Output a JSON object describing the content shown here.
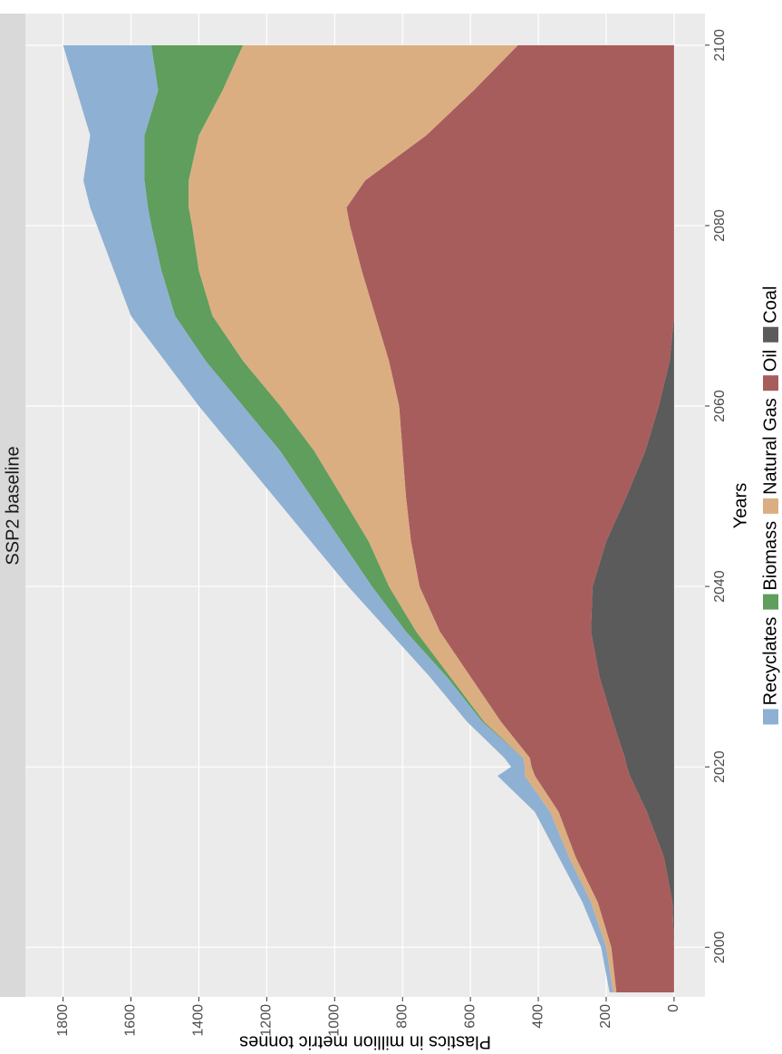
{
  "chart_data": {
    "type": "area",
    "stacked": true,
    "title": "SSP2 baseline",
    "x_label": "Years",
    "y_label": "Plastics in million metric tonnes",
    "x": [
      1995,
      2000,
      2005,
      2010,
      2015,
      2019,
      2020,
      2021,
      2025,
      2030,
      2035,
      2040,
      2045,
      2050,
      2055,
      2060,
      2065,
      2070,
      2075,
      2080,
      2082,
      2085,
      2090,
      2095,
      2100
    ],
    "series": [
      {
        "name": "Recyclates",
        "color": "#8eb0d3",
        "values": [
          10,
          15,
          25,
          30,
          45,
          80,
          40,
          55,
          45,
          50,
          50,
          70,
          90,
          110,
          130,
          130,
          120,
          130,
          140,
          160,
          170,
          180,
          160,
          240,
          260
        ]
      },
      {
        "name": "Biomass",
        "color": "#5f9e5c",
        "values": [
          0,
          0,
          0,
          0,
          0,
          0,
          0,
          0,
          5,
          10,
          30,
          50,
          80,
          90,
          100,
          110,
          110,
          110,
          110,
          120,
          120,
          130,
          160,
          190,
          270
        ]
      },
      {
        "name": "Natural Gas",
        "color": "#dbae82",
        "values": [
          10,
          15,
          20,
          20,
          25,
          30,
          20,
          20,
          50,
          60,
          70,
          90,
          125,
          190,
          260,
          350,
          430,
          480,
          480,
          465,
          465,
          520,
          670,
          740,
          810
        ]
      },
      {
        "name": "Oil",
        "color": "#a85d5d",
        "values": [
          170,
          185,
          220,
          260,
          260,
          280,
          281,
          280,
          330,
          380,
          445,
          510,
          575,
          650,
          715,
          765,
          827,
          880,
          920,
          955,
          965,
          910,
          730,
          590,
          460
        ]
      },
      {
        "name": "Coal",
        "color": "#5b5b5b",
        "values": [
          0,
          0,
          5,
          30,
          80,
          130,
          139,
          145,
          180,
          220,
          245,
          240,
          200,
          140,
          85,
          45,
          13,
          0,
          0,
          0,
          0,
          0,
          0,
          0,
          0
        ]
      }
    ],
    "xlim": [
      1994.5,
      2103.5
    ],
    "xticks": [
      2000,
      2020,
      2040,
      2060,
      2080,
      2100
    ],
    "ylim": [
      -91,
      1911
    ],
    "yticks": [
      0,
      200,
      400,
      600,
      800,
      1000,
      1200,
      1400,
      1600,
      1800
    ],
    "grid": true,
    "legend": "bottom"
  }
}
